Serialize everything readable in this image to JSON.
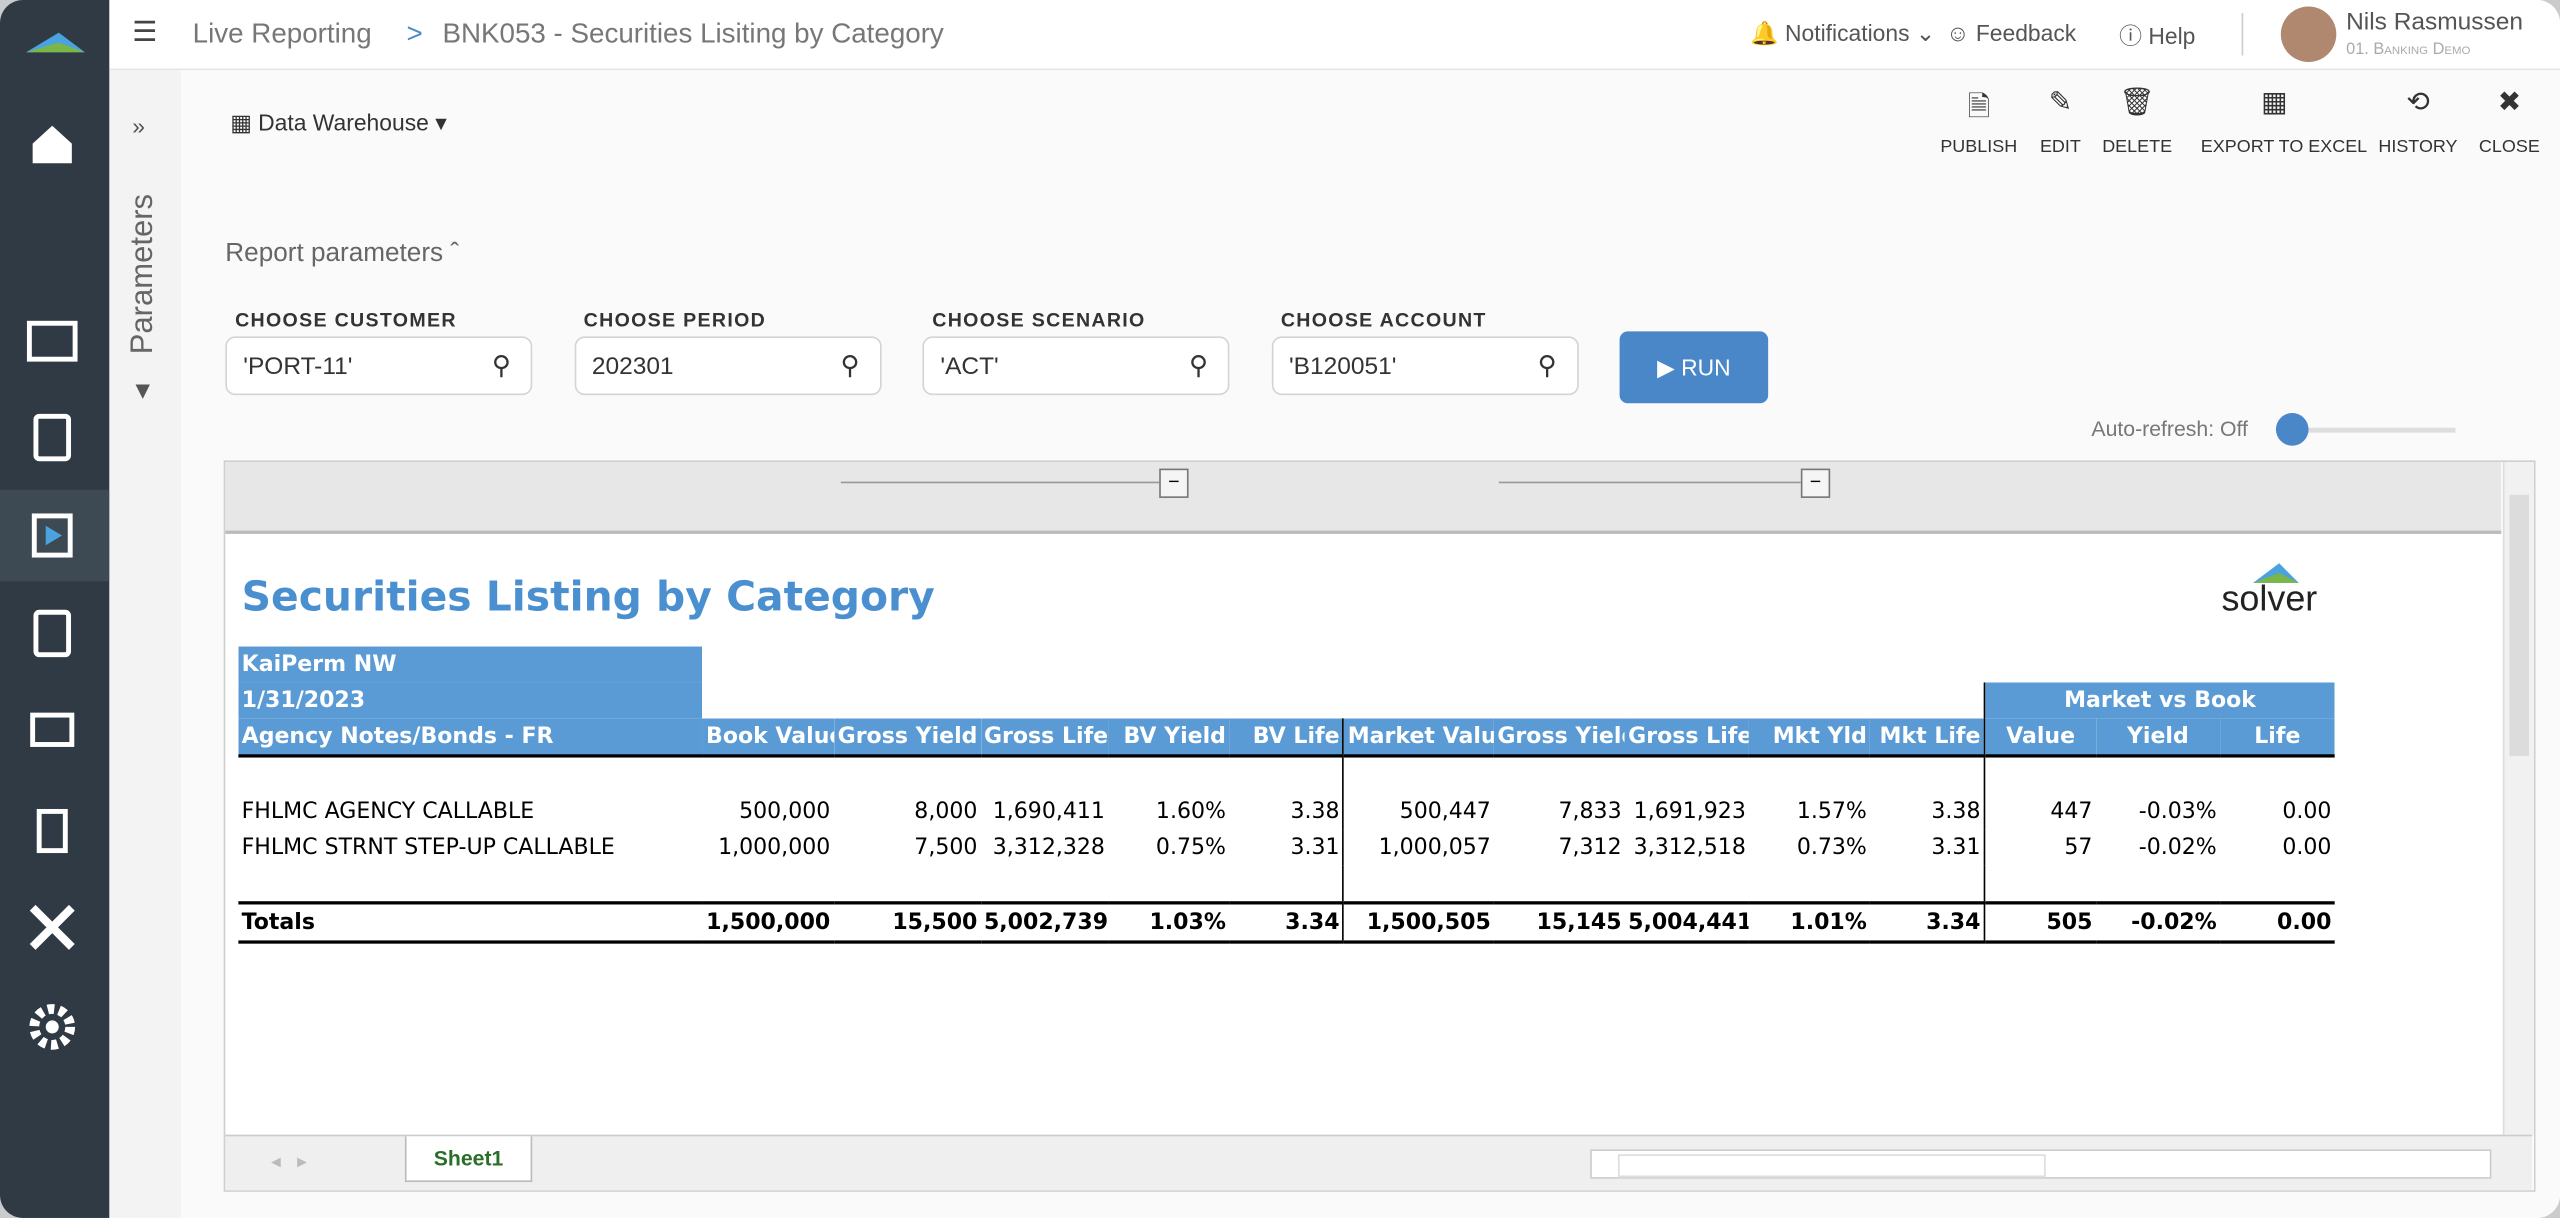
{
  "breadcrumb": {
    "root": "Live Reporting",
    "separator": ">",
    "page": "BNK053 - Securities Lisiting by Category"
  },
  "topbar": {
    "notifications": "Notifications",
    "feedback": "Feedback",
    "help": "Help",
    "user_name": "Nils Rasmussen",
    "user_org": "01. Banking Demo"
  },
  "side_panel": "Parameters",
  "data_source": "Data Warehouse",
  "toolbar": [
    "PUBLISH",
    "EDIT",
    "DELETE",
    "EXPORT TO EXCEL",
    "HISTORY",
    "CLOSE"
  ],
  "parameters": {
    "title": "Report parameters",
    "fields": [
      {
        "label": "CHOOSE CUSTOMER",
        "value": "'PORT-11'"
      },
      {
        "label": "CHOOSE PERIOD",
        "value": "202301"
      },
      {
        "label": "CHOOSE SCENARIO",
        "value": "'ACT'"
      },
      {
        "label": "CHOOSE ACCOUNT",
        "value": "'B120051'"
      }
    ],
    "run": "RUN",
    "auto_refresh": "Auto-refresh: Off"
  },
  "report": {
    "title": "Securities Listing by Category",
    "logo": "solver",
    "header_lines": [
      "KaiPerm NW",
      "1/31/2023",
      "Agency Notes/Bonds - FR"
    ],
    "group_header": "Market vs Book",
    "columns": [
      "Book Value",
      "Gross Yield",
      "Gross Life",
      "BV Yield",
      "BV Life",
      "Market Value",
      "Gross Yield",
      "Gross Life",
      "Mkt Yld",
      "Mkt Life",
      "Value",
      "Yield",
      "Life"
    ],
    "rows": [
      {
        "name": "FHLMC AGENCY CALLABLE",
        "cells": [
          "500,000",
          "8,000",
          "1,690,411",
          "1.60%",
          "3.38",
          "500,447",
          "7,833",
          "1,691,923",
          "1.57%",
          "3.38",
          "447",
          "-0.03%",
          "0.00"
        ]
      },
      {
        "name": "FHLMC STRNT STEP-UP CALLABLE",
        "cells": [
          "1,000,000",
          "7,500",
          "3,312,328",
          "0.75%",
          "3.31",
          "1,000,057",
          "7,312",
          "3,312,518",
          "0.73%",
          "3.31",
          "57",
          "-0.02%",
          "0.00"
        ]
      }
    ],
    "totals": {
      "name": "Totals",
      "cells": [
        "1,500,000",
        "15,500",
        "5,002,739",
        "1.03%",
        "3.34",
        "1,500,505",
        "15,145",
        "5,004,441",
        "1.01%",
        "3.34",
        "505",
        "-0.02%",
        "0.00"
      ]
    }
  },
  "sheet_tab": "Sheet1"
}
